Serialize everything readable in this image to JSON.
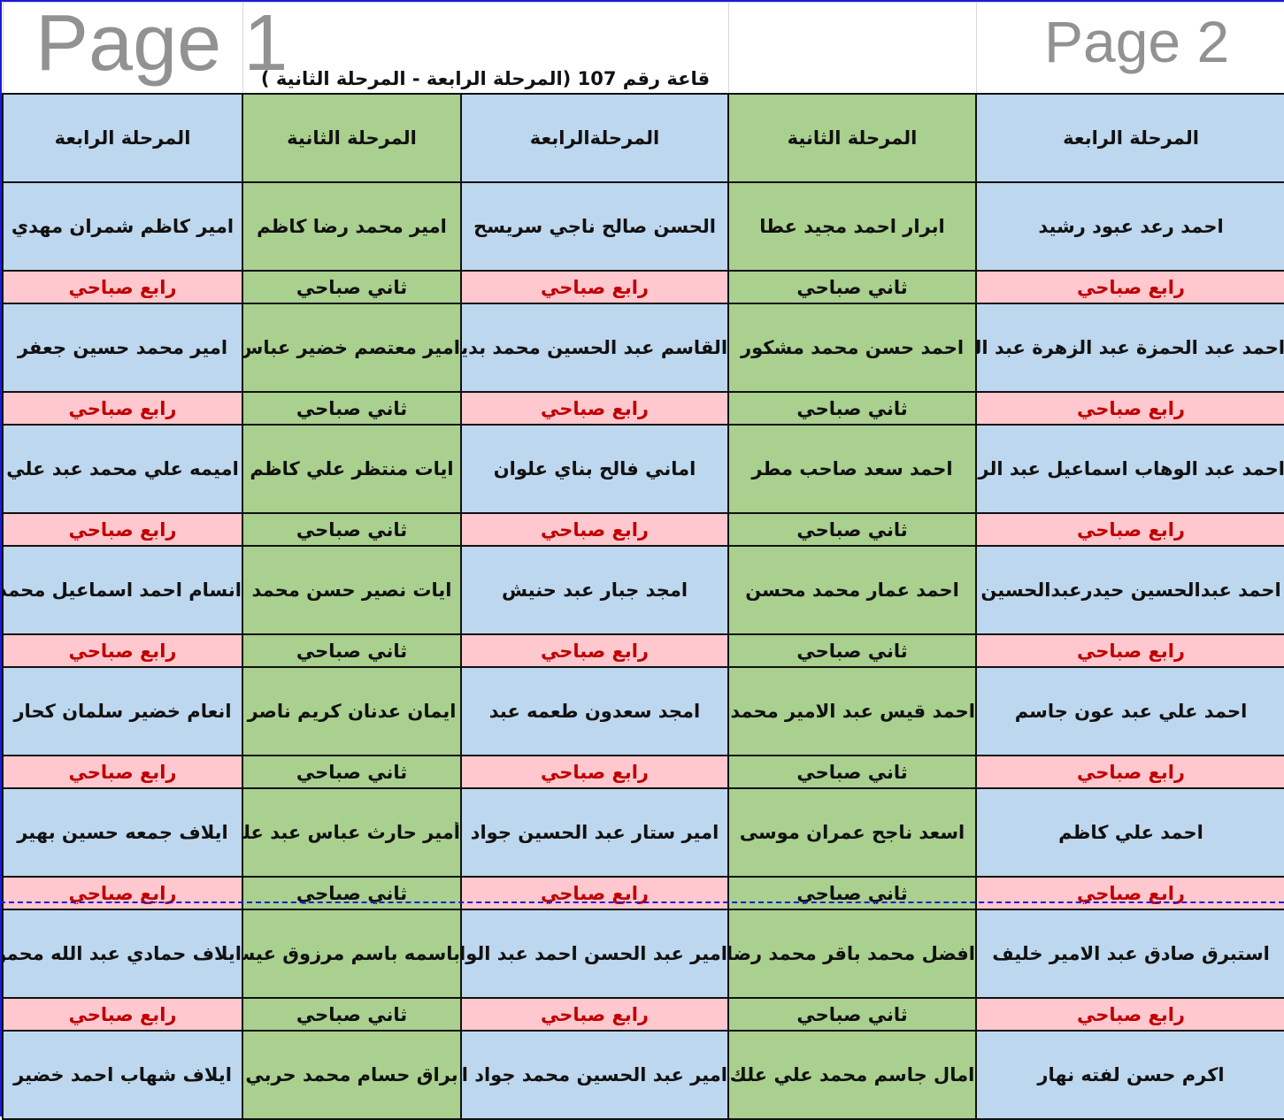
{
  "title": "قاعة رقم 107 (المرحلة الرابعة - المرحلة الثانية )",
  "headers": [
    "المرحلة الرابعة",
    "المرحلة الثانية",
    "المرحلةالرابعة",
    "المرحلة الثانية",
    "المرحلة الرابعة"
  ],
  "column_stage": [
    "fourth",
    "second",
    "fourth",
    "second",
    "fourth"
  ],
  "labels": {
    "fourth": "رابع صباحي",
    "second": "ثاني  صباحي"
  },
  "rows": [
    [
      "احمد رعد عبود رشيد",
      "ابرار احمد مجيد عطا",
      "الحسن صالح ناجي سريسح",
      "امير محمد رضا كاظم",
      "امير كاظم شمران مهدي"
    ],
    [
      "احمد عبد الحمزة عبد الزهرة عبد الزيد",
      "احمد حسن محمد مشكور",
      "القاسم عبد الحسين محمد بديري",
      "امير معتصم خضير عباس",
      "امير محمد حسين جعفر"
    ],
    [
      "احمد عبد الوهاب اسماعيل عبد الرحيم",
      "احمد سعد صاحب مطر",
      "اماني فالح بناي علوان",
      "ايات منتظر علي كاظم",
      "اميمه علي محمد عبد علي"
    ],
    [
      "احمد عبدالحسين حيدرعبدالحسين",
      "احمد عمار محمد محسن",
      "امجد جبار عبد حنيش",
      "ايات نصير حسن محمد",
      "انسام احمد اسماعيل محمد"
    ],
    [
      "احمد علي عبد عون جاسم",
      "احمد قيس عبد الامير محمد رضا",
      "امجد سعدون طعمه عبد",
      "ايمان عدنان كريم ناصر",
      "انعام خضير سلمان كحار"
    ],
    [
      "احمد علي كاظم",
      "اسعد ناجح عمران موسى",
      "امير ستار عبد الحسين جواد",
      "أمير حارث عباس عبد علي",
      "ايلاف جمعه حسين بهير"
    ],
    [
      "استبرق صادق عبد الامير خليف",
      "افضل محمد باقر محمد رضا باقر",
      "امير عبد الحسن احمد عبد الواحد",
      "باسمه باسم مرزوق عيسى",
      "ايلاف حمادي عبد الله محمود"
    ],
    [
      "اكرم حسن لفته نهار",
      "امال جاسم محمد علي علك",
      "امير عبد الحسين محمد جواد احمد",
      "براق حسام محمد حربي",
      "ايلاف شهاب احمد خضير"
    ]
  ],
  "watermarks": [
    "Page 1",
    "Page 2"
  ],
  "colors": {
    "fourth_fill": "#bdd7ee",
    "second_fill": "#a9d08e",
    "label_fourth_fill": "#ffc7ce",
    "label_fourth_text": "#c00000"
  }
}
